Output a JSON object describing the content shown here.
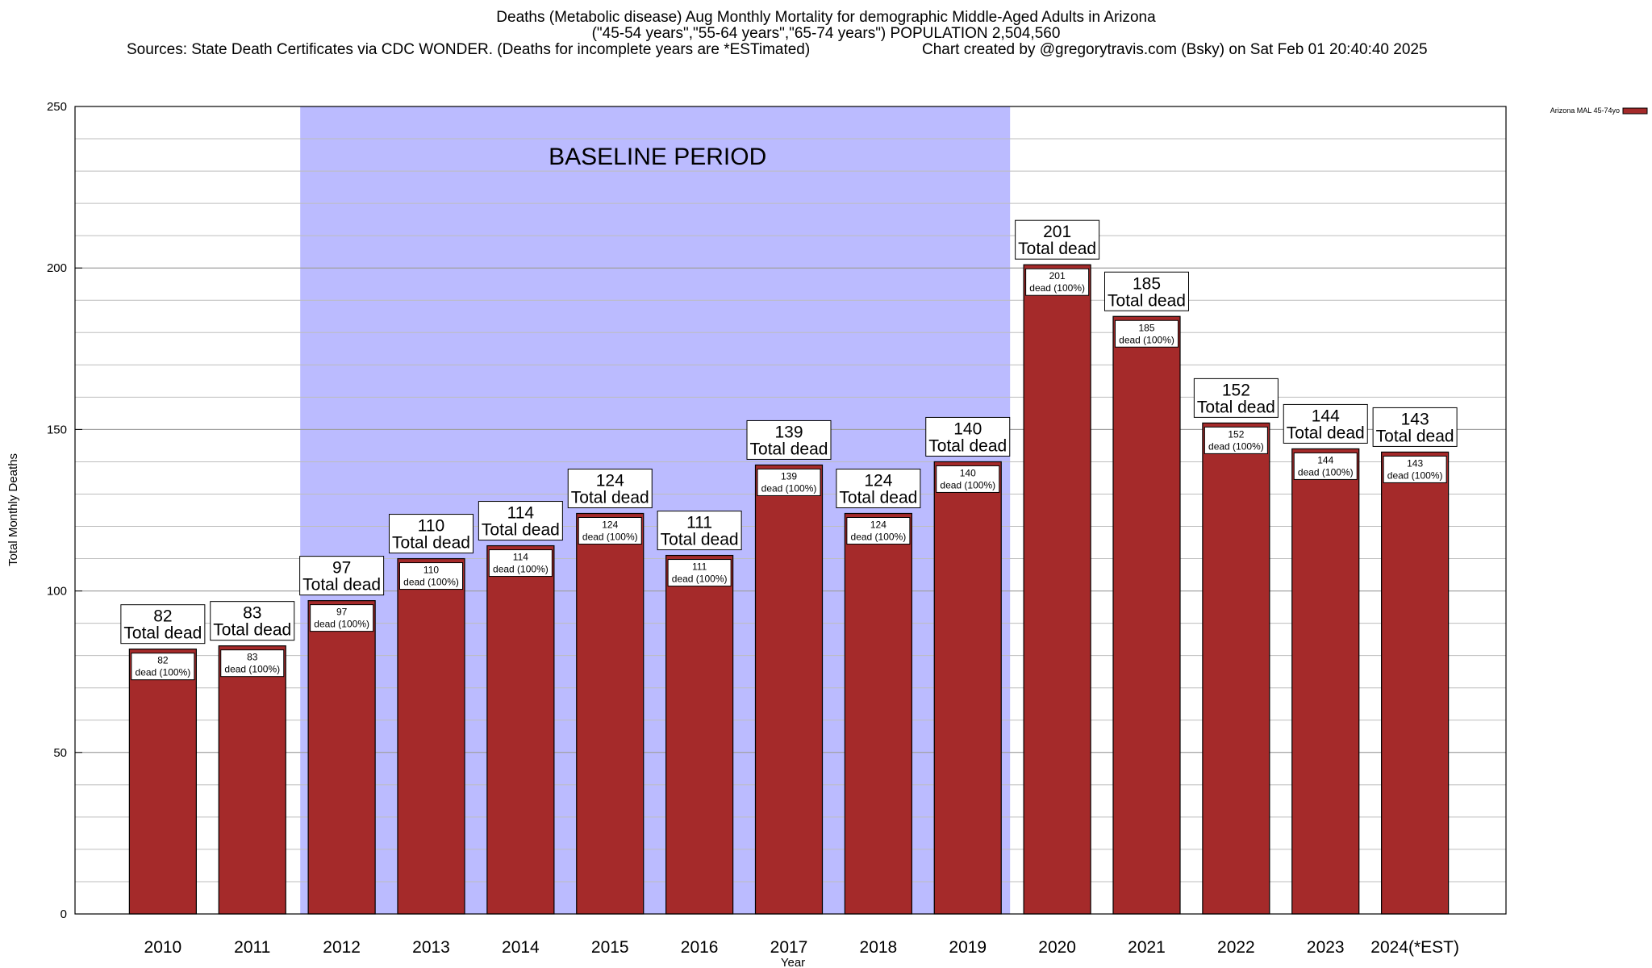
{
  "header": {
    "title_line1": "Deaths (Metabolic disease) Aug Monthly Mortality for demographic Middle-Aged Adults in Arizona",
    "title_line2": "(\"45-54 years\",\"55-64 years\",\"65-74 years\") POPULATION 2,504,560",
    "sources": "Sources: State Death Certificates via CDC WONDER. (Deaths for incomplete years are *ESTimated)",
    "credit": "Chart created by @gregorytravis.com (Bsky) on Sat Feb 01 20:40:40 2025"
  },
  "chart_data": {
    "type": "bar",
    "categories": [
      "2010",
      "2011",
      "2012",
      "2013",
      "2014",
      "2015",
      "2016",
      "2017",
      "2018",
      "2019",
      "2020",
      "2021",
      "2022",
      "2023",
      "2024(*EST)"
    ],
    "series": [
      {
        "name": "Arizona MAL 45-74yo",
        "values": [
          82,
          83,
          97,
          110,
          114,
          124,
          111,
          139,
          124,
          140,
          201,
          185,
          152,
          144,
          143
        ],
        "color": "#a52a2a"
      }
    ],
    "xlabel": "Year",
    "ylabel": "Total Monthly Deaths",
    "ylim": [
      0,
      250
    ],
    "yticks": [
      0,
      50,
      100,
      150,
      200,
      250
    ],
    "grid": true,
    "legend_position": "top-right",
    "baseline": {
      "label": "BASELINE PERIOD",
      "from": "2012",
      "to": "2019",
      "color": "#bbbbff"
    },
    "label_top_suffix": "Total dead",
    "label_inner_suffix": "dead (100%)"
  }
}
